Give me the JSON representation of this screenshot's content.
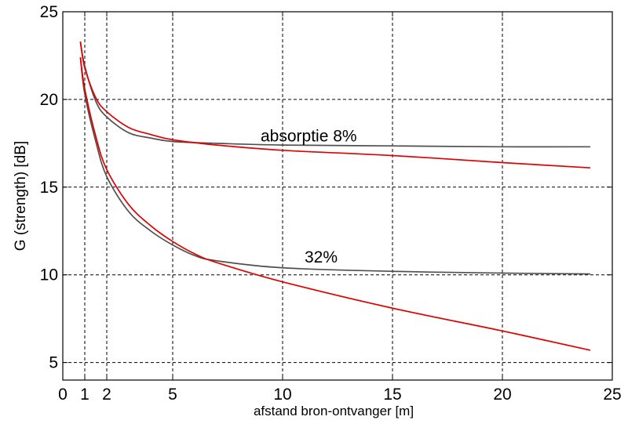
{
  "chart_data": {
    "type": "line",
    "title": "",
    "xlabel": "afstand bron-ontvanger [m]",
    "ylabel": "G (strength)  [dB]",
    "xlim": [
      0,
      25
    ],
    "ylim": [
      4,
      25
    ],
    "xticks": [
      0,
      1,
      2,
      5,
      10,
      15,
      20,
      25
    ],
    "yticks": [
      5,
      10,
      15,
      20,
      25
    ],
    "grid": true,
    "annotations": [
      {
        "text": "absorptie 8%",
        "x": 9,
        "y": 17.6
      },
      {
        "text": "32%",
        "x": 11,
        "y": 10.7
      }
    ],
    "series": [
      {
        "color": "#505050",
        "x": [
          0.8,
          1,
          1.5,
          2,
          3,
          4,
          5,
          7,
          10,
          15,
          20,
          24
        ],
        "y": [
          23.3,
          21.9,
          19.9,
          19.0,
          18.1,
          17.8,
          17.6,
          17.5,
          17.4,
          17.35,
          17.3,
          17.3
        ]
      },
      {
        "color": "#e00000",
        "x": [
          0.8,
          1,
          1.5,
          2,
          3,
          4,
          5,
          7,
          10,
          15,
          20,
          24
        ],
        "y": [
          23.3,
          21.8,
          20.1,
          19.3,
          18.4,
          18.0,
          17.7,
          17.4,
          17.1,
          16.8,
          16.4,
          16.1
        ]
      },
      {
        "color": "#505050",
        "x": [
          0.8,
          1,
          1.5,
          2,
          3,
          4,
          5,
          6,
          7,
          10,
          15,
          20,
          24
        ],
        "y": [
          22.4,
          20.3,
          17.6,
          15.6,
          13.6,
          12.5,
          11.7,
          11.1,
          10.8,
          10.4,
          10.2,
          10.1,
          10.05
        ]
      },
      {
        "color": "#e00000",
        "x": [
          0.8,
          1,
          1.5,
          2,
          3,
          4,
          5,
          6,
          7,
          10,
          15,
          20,
          24
        ],
        "y": [
          22.4,
          20.6,
          17.9,
          16.0,
          14.0,
          12.8,
          11.9,
          11.2,
          10.7,
          9.6,
          8.1,
          6.8,
          5.7
        ]
      }
    ]
  }
}
